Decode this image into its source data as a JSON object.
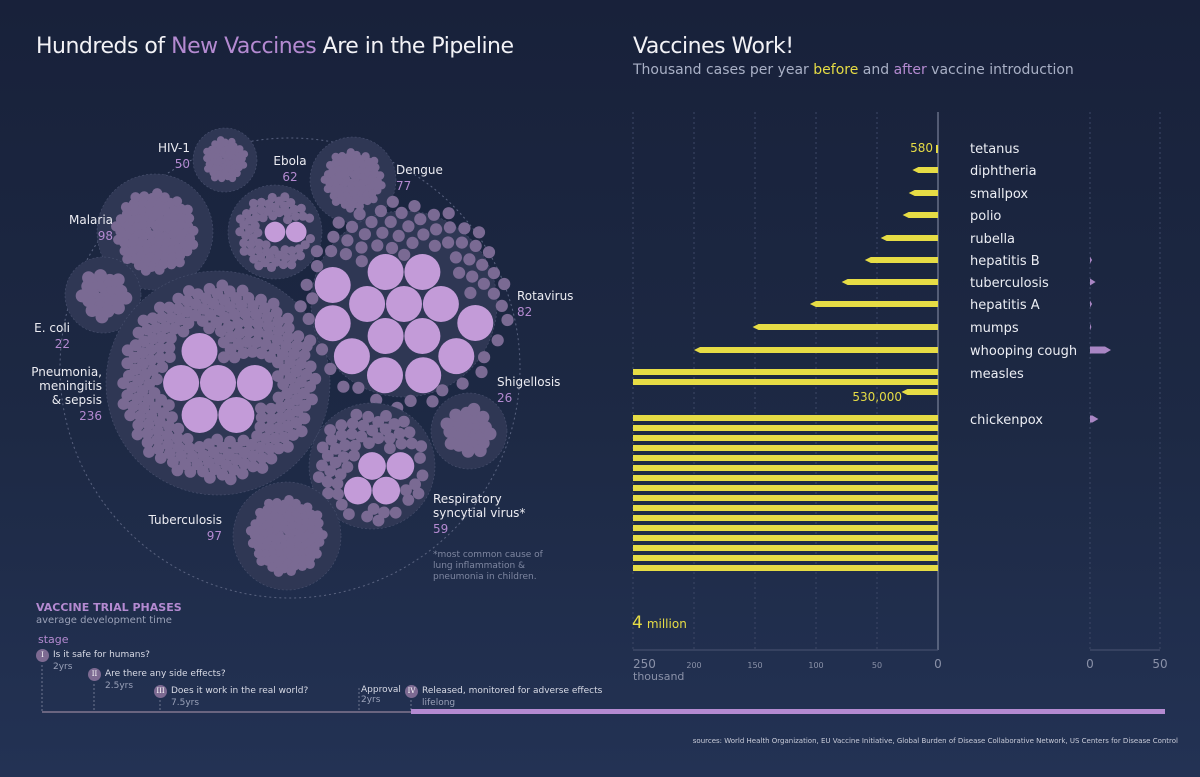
{
  "left_title": {
    "pre": "Hundreds of ",
    "highlight": "New Vaccines",
    "post": " Are in the Pipeline"
  },
  "right_title": "Vaccines Work!",
  "right_subtitle": {
    "pre": "Thousand cases per year ",
    "before": "before",
    "mid": " and ",
    "after": "after",
    "post": " vaccine introduction"
  },
  "pipeline": [
    {
      "name": "HIV-1",
      "count": "50"
    },
    {
      "name": "Ebola",
      "count": "62"
    },
    {
      "name": "Dengue",
      "count": "77"
    },
    {
      "name": "Malaria",
      "count": "98"
    },
    {
      "name": "E. coli",
      "count": "22"
    },
    {
      "name": "Pneumonia, meningitis & sepsis",
      "count": "236"
    },
    {
      "name": "Rotavirus",
      "count": "82"
    },
    {
      "name": "Shigellosis",
      "count": "26"
    },
    {
      "name": "Respiratory syncytial virus*",
      "count": "59"
    },
    {
      "name": "Tuberculosis",
      "count": "97"
    }
  ],
  "footnote": "*most common cause of lung inflammation & pneumonia in children.",
  "phases": {
    "title": "VACCINE TRIAL PHASES",
    "subtitle": "average development time",
    "stage_label": "stage",
    "items": [
      {
        "numeral": "I",
        "text": "Is it safe for humans?",
        "duration": "2yrs"
      },
      {
        "numeral": "II",
        "text": "Are there any side effects?",
        "duration": "2.5yrs"
      },
      {
        "numeral": "III",
        "text": "Does it work in the real world?",
        "duration": "7.5yrs"
      },
      {
        "numeral": "",
        "text": "Approval",
        "duration": "2yrs"
      },
      {
        "numeral": "IV",
        "text": "Released, monitored for adverse effects",
        "duration": "lifelong"
      }
    ]
  },
  "chart_data": {
    "type": "bar",
    "title": "Vaccines Work!",
    "subtitle": "Thousand cases per year before and after vaccine introduction",
    "categories": [
      "tetanus",
      "diphtheria",
      "smallpox",
      "polio",
      "rubella",
      "hepatitis B",
      "tuberculosis",
      "hepatitis A",
      "mumps",
      "whooping cough",
      "measles",
      "chickenpox"
    ],
    "series": [
      {
        "name": "before",
        "values": [
          0.58,
          21,
          24,
          29,
          47,
          60,
          79,
          105,
          152,
          200,
          530,
          4000
        ]
      },
      {
        "name": "after",
        "values": [
          0,
          0,
          0,
          0,
          0,
          1.5,
          4,
          1.5,
          1,
          15,
          0,
          6
        ]
      }
    ],
    "annotations": [
      "580",
      "530,000",
      "4 million"
    ],
    "before_axis": {
      "ticks": [
        "250",
        "200",
        "150",
        "100",
        "50",
        "0"
      ],
      "unit": "thousand",
      "xlim": [
        250,
        0
      ]
    },
    "after_axis": {
      "ticks": [
        "0",
        "50"
      ],
      "xlim": [
        0,
        50
      ]
    },
    "colors": {
      "before": "#e6dc45",
      "after": "#a986c4"
    }
  }
}
